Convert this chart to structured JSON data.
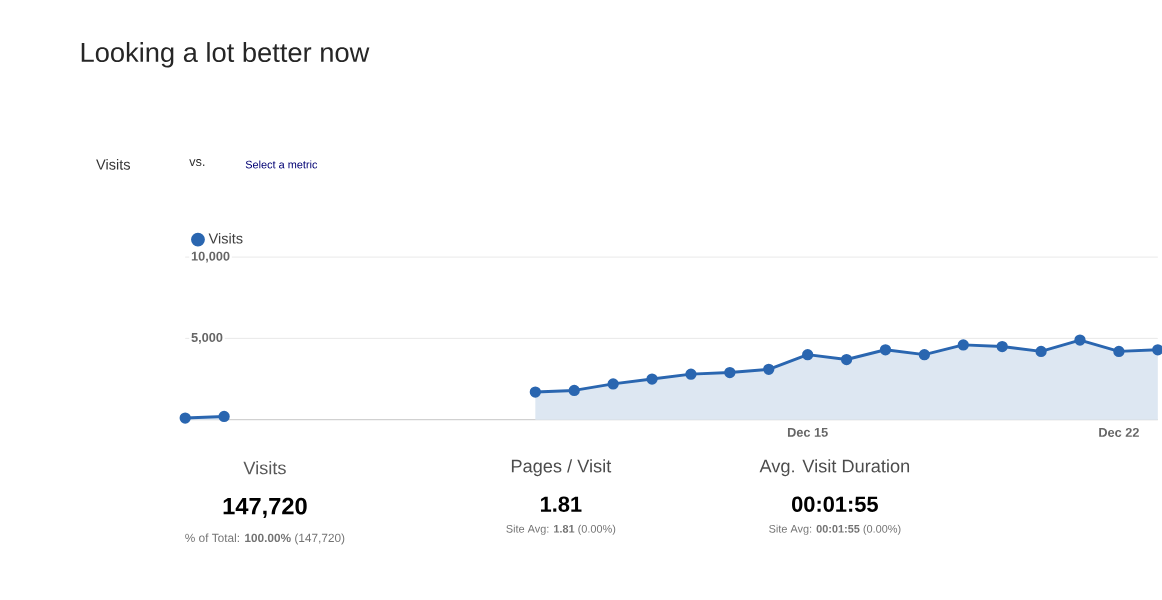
{
  "chart_data": {
    "type": "area",
    "title": "Looking a lot better now",
    "categories": [
      null,
      null,
      null,
      null,
      null,
      null,
      null,
      null,
      null,
      null,
      null,
      null,
      null,
      null,
      null,
      null,
      "Dec 15",
      null,
      null,
      null,
      null,
      null,
      null,
      null,
      "Dec 22",
      null
    ],
    "series": [
      {
        "name": "Visits",
        "color": "#2a66b0",
        "values": [
          100,
          200,
          null,
          null,
          null,
          null,
          null,
          null,
          null,
          1700,
          1800,
          2200,
          2500,
          2800,
          2900,
          3100,
          4000,
          3700,
          4300,
          4000,
          4600,
          4500,
          4200,
          4900,
          4200,
          4300
        ]
      }
    ],
    "ylim": [
      0,
      10000
    ],
    "yticks": [
      {
        "value": 5000,
        "label": "5,000"
      },
      {
        "value": 10000,
        "label": "10,000"
      }
    ],
    "grid": "y",
    "legend": "top left",
    "marker": "circle",
    "annotations": [
      "Visits",
      "vs.",
      "Select a metric",
      "Visits",
      "147,720",
      "% of Total: **100.00%** (147,720)",
      "Pages / Visit",
      "1.81",
      "Site Avg: **1.81** (0.00%)",
      "Avg. Visit Duration",
      "00:01:55",
      "Site Avg: **00:01:55** (0.00%)"
    ]
  }
}
